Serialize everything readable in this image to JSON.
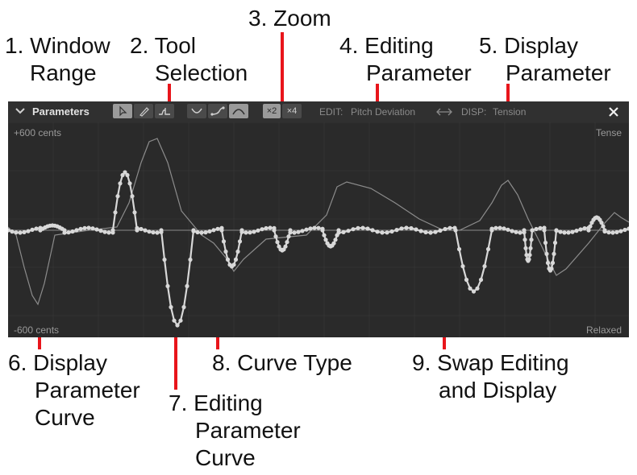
{
  "callouts": [
    {
      "id": "window_range",
      "number": "1.",
      "lines": [
        "Window",
        "Range"
      ]
    },
    {
      "id": "tool_selection",
      "number": "2.",
      "lines": [
        "Tool",
        "Selection"
      ]
    },
    {
      "id": "zoom",
      "number": "3.",
      "lines": [
        "Zoom"
      ]
    },
    {
      "id": "editing_parameter",
      "number": "4.",
      "lines": [
        "Editing",
        "Parameter"
      ]
    },
    {
      "id": "display_parameter",
      "number": "5.",
      "lines": [
        "Display",
        "Parameter"
      ]
    },
    {
      "id": "display_parameter_curve",
      "number": "6.",
      "lines": [
        "Display",
        "Parameter",
        "Curve"
      ]
    },
    {
      "id": "editing_parameter_curve",
      "number": "7.",
      "lines": [
        "Editing",
        "Parameter",
        "Curve"
      ]
    },
    {
      "id": "curve_type",
      "number": "8.",
      "lines": [
        "Curve Type"
      ]
    },
    {
      "id": "swap_editing_display",
      "number": "9.",
      "lines": [
        "Swap Editing",
        "and Display"
      ]
    }
  ],
  "panel": {
    "title": "Parameters",
    "collapse_icon": "chevron-down-icon",
    "tools": [
      {
        "name": "select",
        "icon": "cursor-arrow-icon",
        "active": true
      },
      {
        "name": "pencil",
        "icon": "pencil-icon",
        "active": false
      },
      {
        "name": "vibrato",
        "icon": "vibrato-tool-icon",
        "active": false
      }
    ],
    "curve_types": [
      {
        "name": "dip",
        "icon": "curve-dip-icon",
        "active": false
      },
      {
        "name": "rise",
        "icon": "curve-rise-icon",
        "active": false
      },
      {
        "name": "bump",
        "icon": "curve-bump-icon",
        "active": true
      }
    ],
    "zoom": [
      {
        "label": "×2",
        "active": true
      },
      {
        "label": "×4",
        "active": false
      }
    ],
    "edit_label": "EDIT:",
    "edit_value": "Pitch Deviation",
    "swap_icon": "swap-arrows-icon",
    "disp_label": "DISP:",
    "disp_value": "Tension",
    "close_icon": "close-icon",
    "range_top_left": "+600 cents",
    "range_bottom_left": "-600 cents",
    "range_top_right": "Tense",
    "range_bottom_right": "Relaxed"
  },
  "colors": {
    "panel_bg": "#2a2a2a",
    "toolbar_bg": "#303030",
    "grid": "#333333",
    "baseline": "#8a8a8a",
    "editing_curve": "#d8d8d8",
    "display_curve": "#8c8c8c",
    "pointer": "#e8151b"
  }
}
